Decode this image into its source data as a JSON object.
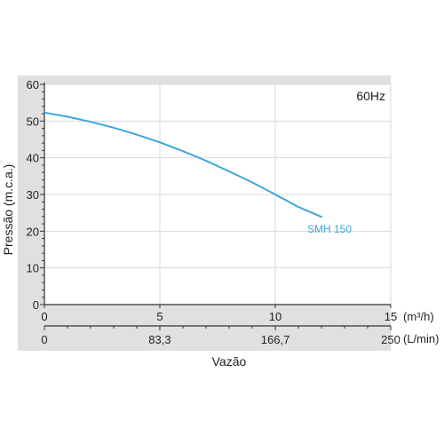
{
  "chart_data": {
    "type": "line",
    "annotation": "60Hz",
    "xlabel": "Vazão",
    "ylabel": "Pressão (m.c.a.)",
    "xlim": [
      0,
      15
    ],
    "ylim": [
      0,
      60
    ],
    "x_ticks": [
      0,
      5,
      10,
      15
    ],
    "x_unit_primary": "(m³/h)",
    "y_ticks": [
      0,
      10,
      20,
      30,
      40,
      50,
      60
    ],
    "secondary_x_axis": {
      "unit": "(L/min)",
      "range": [
        0,
        250
      ],
      "ticks": [
        {
          "value": 0,
          "label": "0"
        },
        {
          "value": 83.3,
          "label": "83,3"
        },
        {
          "value": 166.7,
          "label": "166,7"
        },
        {
          "value": 250,
          "label": "250"
        }
      ]
    },
    "grid": true,
    "series": [
      {
        "name": "SMH 150",
        "color": "#3aa8d8",
        "x": [
          0,
          1,
          2,
          3,
          4,
          5,
          6,
          7,
          8,
          9,
          10,
          11,
          12
        ],
        "y": [
          52.3,
          51.2,
          49.8,
          48.2,
          46.3,
          44.2,
          41.8,
          39.2,
          36.3,
          33.3,
          30.0,
          26.6,
          23.9
        ]
      }
    ]
  }
}
